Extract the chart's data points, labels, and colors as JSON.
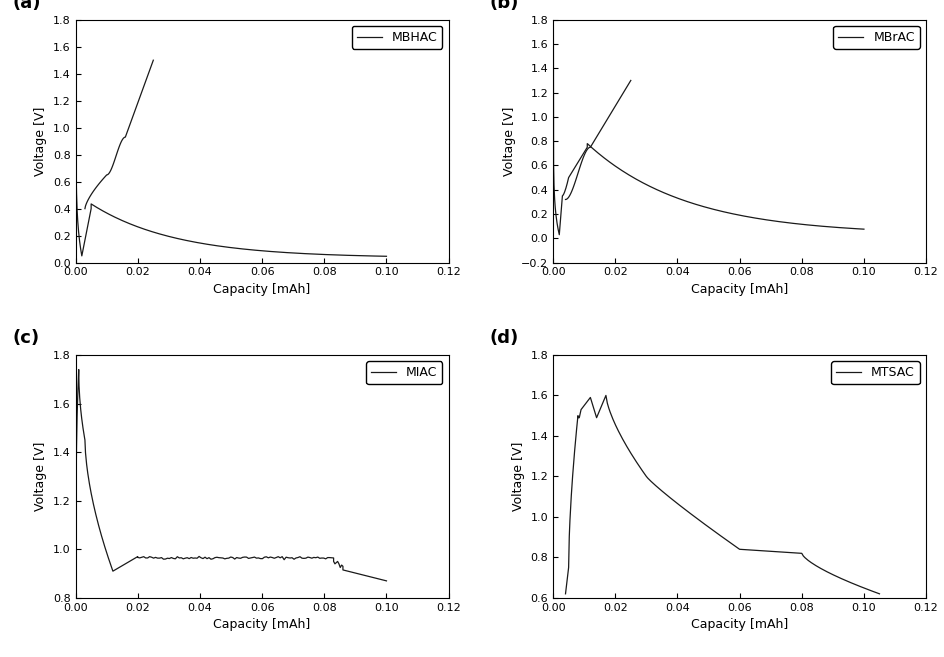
{
  "panels": [
    {
      "label": "(a)",
      "legend": "MBHAC",
      "xlabel": "Capacity [mAh]",
      "ylabel": "Voltage [V]",
      "xlim": [
        0.0,
        0.12
      ],
      "ylim": [
        0.0,
        1.8
      ],
      "yticks": [
        0.0,
        0.2,
        0.4,
        0.6,
        0.8,
        1.0,
        1.2,
        1.4,
        1.6,
        1.8
      ],
      "xticks": [
        0.0,
        0.02,
        0.04,
        0.06,
        0.08,
        0.1,
        0.12
      ]
    },
    {
      "label": "(b)",
      "legend": "MBrAC",
      "xlabel": "Capacity [mAh]",
      "ylabel": "Voltage [V]",
      "xlim": [
        0.0,
        0.12
      ],
      "ylim": [
        -0.2,
        1.8
      ],
      "yticks": [
        -0.2,
        0.0,
        0.2,
        0.4,
        0.6,
        0.8,
        1.0,
        1.2,
        1.4,
        1.6,
        1.8
      ],
      "xticks": [
        0.0,
        0.02,
        0.04,
        0.06,
        0.08,
        0.1,
        0.12
      ]
    },
    {
      "label": "(c)",
      "legend": "MIAC",
      "xlabel": "Capacity [mAh]",
      "ylabel": "Voltage [V]",
      "xlim": [
        0.0,
        0.12
      ],
      "ylim": [
        0.8,
        1.8
      ],
      "yticks": [
        0.8,
        1.0,
        1.2,
        1.4,
        1.6,
        1.8
      ],
      "xticks": [
        0.0,
        0.02,
        0.04,
        0.06,
        0.08,
        0.1,
        0.12
      ]
    },
    {
      "label": "(d)",
      "legend": "MTSAC",
      "xlabel": "Capacity [mAh]",
      "ylabel": "Voltage [V]",
      "xlim": [
        0.0,
        0.12
      ],
      "ylim": [
        0.6,
        1.8
      ],
      "yticks": [
        0.6,
        0.8,
        1.0,
        1.2,
        1.4,
        1.6,
        1.8
      ],
      "xticks": [
        0.0,
        0.02,
        0.04,
        0.06,
        0.08,
        0.1,
        0.12
      ]
    }
  ],
  "line_color": "#1a1a1a",
  "line_width": 0.9,
  "background_color": "#ffffff",
  "label_fontsize": 13,
  "tick_fontsize": 8,
  "legend_fontsize": 9,
  "axis_label_fontsize": 9
}
